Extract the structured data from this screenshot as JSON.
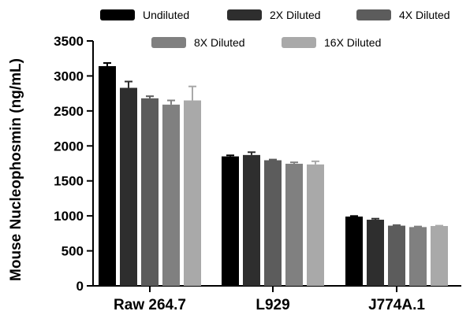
{
  "chart_data": {
    "type": "bar",
    "ylabel": "Mouse Nucleophosmin (ng/mL)",
    "ylim": [
      0,
      3500
    ],
    "yticks": [
      0,
      500,
      1000,
      1500,
      2000,
      2500,
      3000,
      3500
    ],
    "grid": false,
    "legend_position": "top",
    "categories": [
      "Raw 264.7",
      "L929",
      "J774A.1"
    ],
    "series": [
      {
        "name": "Undiluted",
        "color": "#000000",
        "values": [
          3140,
          1850,
          990
        ],
        "errors": [
          45,
          15,
          8
        ]
      },
      {
        "name": "2X Diluted",
        "color": "#2e2e2e",
        "values": [
          2830,
          1870,
          945
        ],
        "errors": [
          90,
          40,
          15
        ]
      },
      {
        "name": "4X Diluted",
        "color": "#5c5c5c",
        "values": [
          2680,
          1795,
          860
        ],
        "errors": [
          30,
          10,
          8
        ]
      },
      {
        "name": "8X Diluted",
        "color": "#808080",
        "values": [
          2590,
          1745,
          840
        ],
        "errors": [
          60,
          20,
          8
        ]
      },
      {
        "name": "16X Diluted",
        "color": "#a9a9a9",
        "values": [
          2650,
          1735,
          855
        ],
        "errors": [
          200,
          45,
          5
        ]
      }
    ]
  }
}
